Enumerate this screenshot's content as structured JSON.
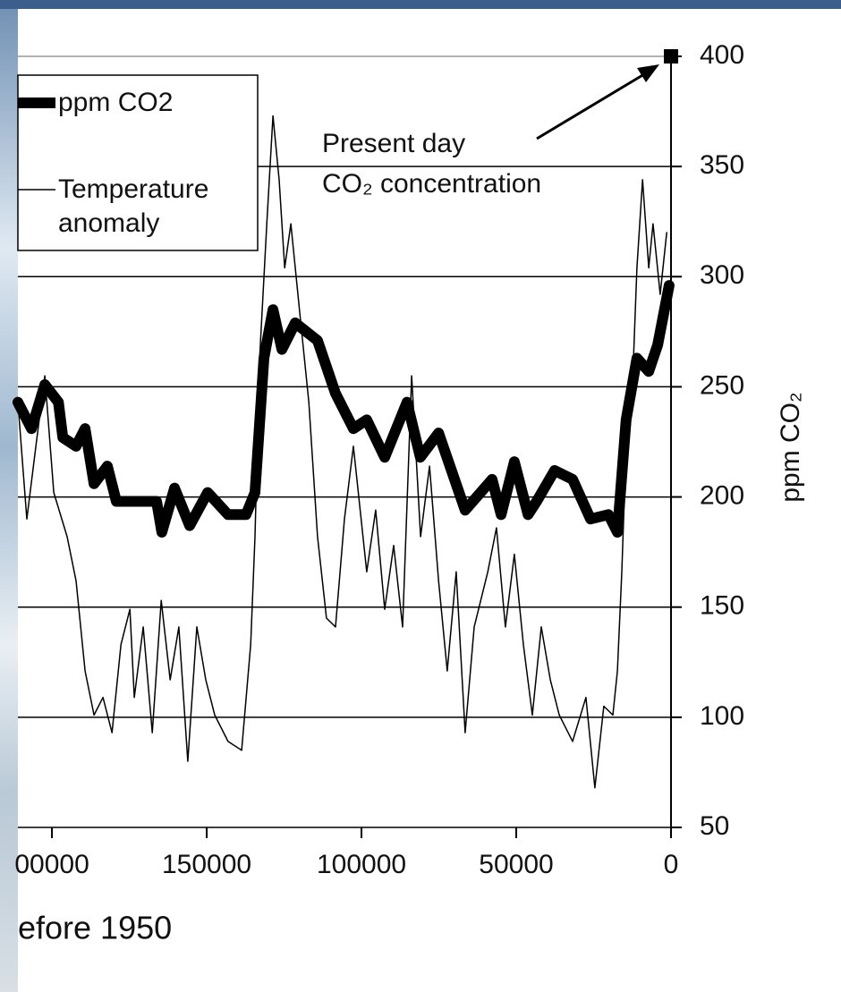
{
  "chart_data": {
    "type": "line",
    "x_label": "efore 1950",
    "y_label": "ppm CO₂",
    "annotation": [
      "Present day",
      "CO₂ concentration"
    ],
    "marker": {
      "x": 0,
      "y": 400
    },
    "xlim": [
      211000,
      0
    ],
    "xticks": [
      {
        "value": 200000,
        "label": "00000"
      },
      150000,
      100000,
      50000,
      0
    ],
    "ylim": [
      50,
      400
    ],
    "yticks": [
      50,
      100,
      150,
      200,
      250,
      300,
      350,
      400
    ],
    "grid": true,
    "series": [
      {
        "name": "ppm CO2",
        "color": "#000000",
        "width": 12,
        "x": [
          211000,
          206600,
          202300,
          197900,
          196500,
          192200,
          189300,
          186400,
          182100,
          179200,
          174800,
          166200,
          164500,
          160400,
          155500,
          149700,
          143100,
          137300,
          134400,
          131500,
          128600,
          125700,
          121400,
          114200,
          108400,
          102600,
          98300,
          92500,
          85300,
          81000,
          75100,
          66500,
          57800,
          54900,
          50600,
          46200,
          43400,
          37600,
          31800,
          26000,
          20200,
          17300,
          14500,
          11000,
          7200,
          4300,
          600
        ],
        "values": [
          243,
          231,
          251,
          243,
          227,
          223,
          231,
          206,
          214,
          198,
          198,
          198,
          184,
          204,
          187,
          202,
          192,
          192,
          202,
          263,
          285,
          267,
          279,
          271,
          247,
          231,
          235,
          218,
          243,
          218,
          229,
          194,
          208,
          192,
          216,
          192,
          198,
          212,
          208,
          190,
          192,
          184,
          235,
          263,
          257,
          269,
          296
        ]
      },
      {
        "name": "Temperature anomaly",
        "color": "#000000",
        "width": 1.5,
        "x": [
          211000,
          208100,
          205200,
          202300,
          199400,
          195100,
          192200,
          189300,
          186400,
          183500,
          180600,
          177700,
          174800,
          173400,
          170500,
          167600,
          164700,
          161800,
          159000,
          156100,
          153200,
          150300,
          147400,
          143100,
          138700,
          135800,
          134400,
          132900,
          130600,
          128600,
          126600,
          124800,
          122800,
          119900,
          117000,
          114200,
          111300,
          108400,
          105500,
          102600,
          98300,
          95400,
          92500,
          89600,
          86700,
          83800,
          80900,
          78000,
          75100,
          72300,
          69400,
          66500,
          63600,
          59200,
          56400,
          53500,
          50600,
          47700,
          44800,
          41900,
          39000,
          36100,
          31800,
          27500,
          24600,
          21700,
          18800,
          17300,
          15900,
          14500,
          12100,
          11000,
          9200,
          7200,
          5800,
          3500,
          1400
        ],
        "values": [
          243,
          190,
          223,
          255,
          202,
          182,
          162,
          121,
          101,
          109,
          93,
          133,
          149,
          109,
          141,
          93,
          153,
          117,
          141,
          80,
          141,
          117,
          101,
          89,
          85,
          133,
          182,
          263,
          324,
          373,
          344,
          304,
          324,
          283,
          243,
          182,
          145,
          141,
          190,
          223,
          166,
          194,
          149,
          178,
          141,
          255,
          182,
          214,
          162,
          121,
          166,
          93,
          141,
          166,
          186,
          141,
          174,
          133,
          101,
          141,
          117,
          101,
          89,
          109,
          68,
          105,
          101,
          121,
          166,
          223,
          263,
          304,
          344,
          304,
          324,
          292,
          320
        ]
      }
    ]
  }
}
